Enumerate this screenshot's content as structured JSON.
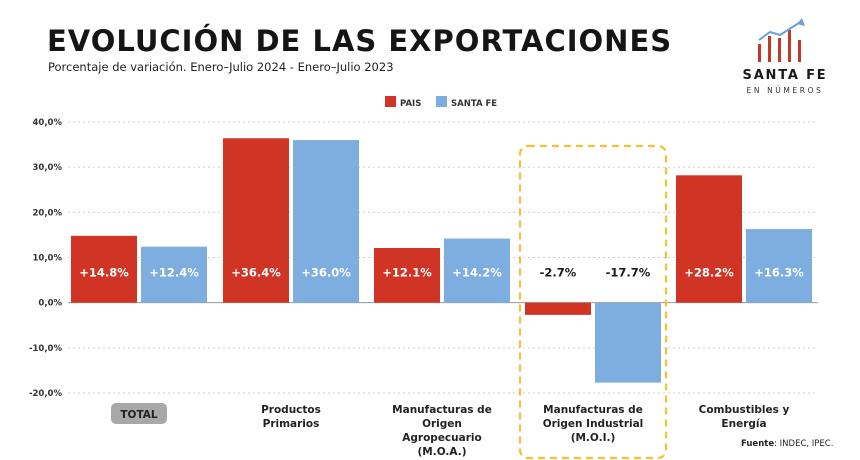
{
  "header": {
    "title": "EVOLUCIÓN DE LAS EXPORTACIONES",
    "subtitle": "Porcentaje de variación. Enero–Julio 2024 - Enero–Julio 2023"
  },
  "brand": {
    "name": "SANTA FE",
    "tagline": "EN NÚMEROS",
    "icon": "bar-growth-arrow-icon",
    "colors": {
      "bars": "#c0392b",
      "arrow": "#6aa2d8"
    }
  },
  "source": {
    "label": "Fuente",
    "text": ": INDEC, IPEC."
  },
  "colors": {
    "pais": "#d03424",
    "santa_fe": "#7eaee0",
    "highlight_box": "#f2c232",
    "total_pill": "#a8a8a8"
  },
  "chart_data": {
    "type": "bar",
    "title": "EVOLUCIÓN DE LAS EXPORTACIONES",
    "subtitle": "Porcentaje de variación. Enero–Julio 2024 - Enero–Julio 2023",
    "categories": [
      [
        "TOTAL"
      ],
      [
        "Productos",
        "Primarios"
      ],
      [
        "Manufacturas de",
        "Origen",
        "Agropecuario",
        "(M.O.A.)"
      ],
      [
        "Manufacturas de",
        "Origen Industrial",
        "(M.O.I.)"
      ],
      [
        "Combustibles y",
        "Energía"
      ]
    ],
    "series": [
      {
        "name": "PAIS",
        "values": [
          14.8,
          36.4,
          12.1,
          -2.7,
          28.2
        ],
        "labels": [
          "+14.8%",
          "+36.4%",
          "+12.1%",
          "-2.7%",
          "+28.2%"
        ]
      },
      {
        "name": "SANTA FE",
        "values": [
          12.4,
          36.0,
          14.2,
          -17.7,
          16.3
        ],
        "labels": [
          "+12.4%",
          "+36.0%",
          "+14.2%",
          "-17.7%",
          "+16.3%"
        ]
      }
    ],
    "ylim": [
      -20,
      40
    ],
    "yticks": [
      40,
      30,
      20,
      10,
      0,
      -10,
      -20
    ],
    "ytick_labels": [
      "40,0%",
      "30,0%",
      "20,0%",
      "10,0%",
      "0,0%",
      "-10,0%",
      "-20,0%"
    ],
    "grid": true,
    "legend_position": "top-center",
    "highlighted_category_index": 3,
    "pill_category_index": 0
  }
}
